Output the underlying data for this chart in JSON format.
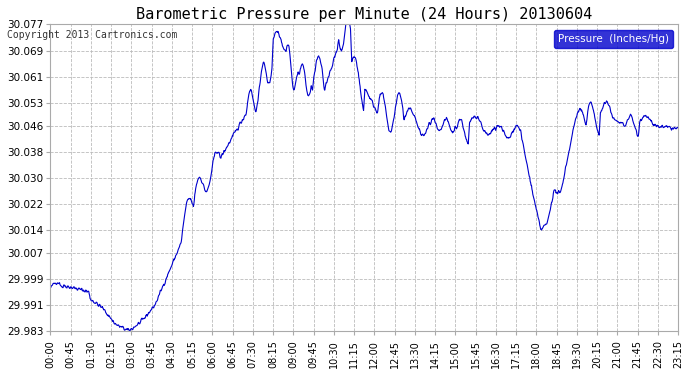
{
  "title": "Barometric Pressure per Minute (24 Hours) 20130604",
  "copyright": "Copyright 2013 Cartronics.com",
  "legend_label": "Pressure  (Inches/Hg)",
  "line_color": "#0000cc",
  "background_color": "#ffffff",
  "plot_background": "#ffffff",
  "grid_color": "#bbbbbb",
  "ylabel_color": "#000000",
  "y_ticks": [
    29.983,
    29.991,
    29.999,
    30.007,
    30.014,
    30.022,
    30.03,
    30.038,
    30.046,
    30.053,
    30.061,
    30.069,
    30.077
  ],
  "x_tick_labels": [
    "00:00",
    "00:45",
    "01:30",
    "02:15",
    "03:00",
    "03:45",
    "04:30",
    "05:15",
    "06:00",
    "06:45",
    "07:30",
    "08:15",
    "09:00",
    "09:45",
    "10:30",
    "11:15",
    "12:00",
    "12:45",
    "13:30",
    "14:15",
    "15:00",
    "15:45",
    "16:30",
    "17:15",
    "18:00",
    "18:45",
    "19:30",
    "20:15",
    "21:00",
    "21:45",
    "22:30",
    "23:15"
  ],
  "ylim_min": 29.983,
  "ylim_max": 30.077
}
